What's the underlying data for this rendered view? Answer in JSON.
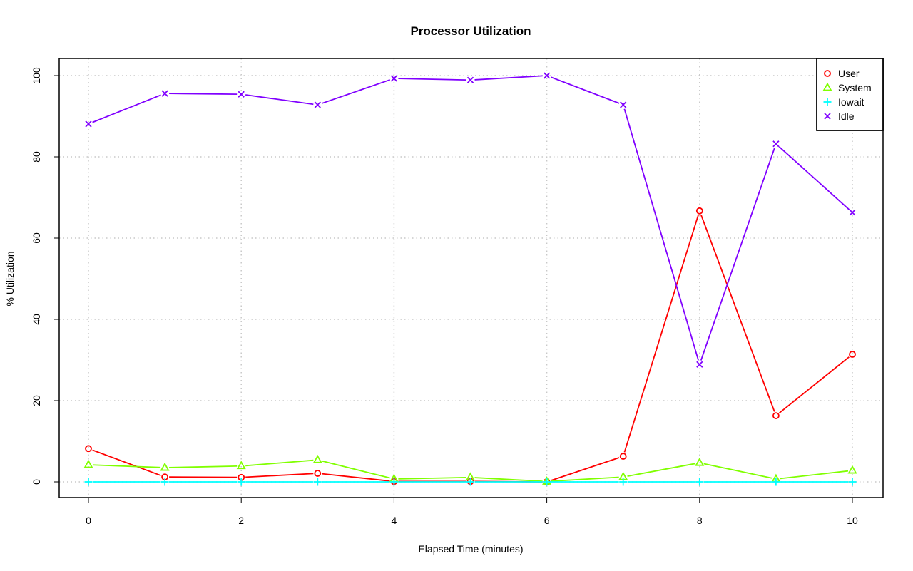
{
  "chart_data": {
    "type": "line",
    "title": "Processor Utilization",
    "xlabel": "Elapsed Time (minutes)",
    "ylabel": "% Utilization",
    "x": [
      0,
      1,
      2,
      3,
      4,
      5,
      6,
      7,
      8,
      9,
      10
    ],
    "xlim": [
      0,
      10
    ],
    "ylim": [
      0,
      100
    ],
    "xticks": [
      0,
      2,
      4,
      6,
      8,
      10
    ],
    "yticks": [
      0,
      20,
      40,
      60,
      80,
      100
    ],
    "grid": true,
    "legend_position": "top-right",
    "series": [
      {
        "name": "User",
        "color": "#ff0000",
        "marker": "circle",
        "values": [
          8.2,
          1.2,
          1.1,
          2.1,
          0.1,
          0.1,
          0.0,
          6.3,
          66.7,
          16.3,
          31.4
        ]
      },
      {
        "name": "System",
        "color": "#80ff00",
        "marker": "triangle",
        "values": [
          4.2,
          3.5,
          3.9,
          5.4,
          0.7,
          1.1,
          0.1,
          1.2,
          4.7,
          0.7,
          2.8
        ]
      },
      {
        "name": "Iowait",
        "color": "#00ffff",
        "marker": "plus",
        "values": [
          0,
          0,
          0,
          0,
          0,
          0,
          0,
          0,
          0,
          0,
          0
        ]
      },
      {
        "name": "Idle",
        "color": "#8000ff",
        "marker": "cross",
        "values": [
          88.1,
          95.6,
          95.4,
          92.8,
          99.3,
          98.9,
          100.0,
          92.8,
          28.9,
          83.2,
          66.3
        ]
      }
    ]
  }
}
